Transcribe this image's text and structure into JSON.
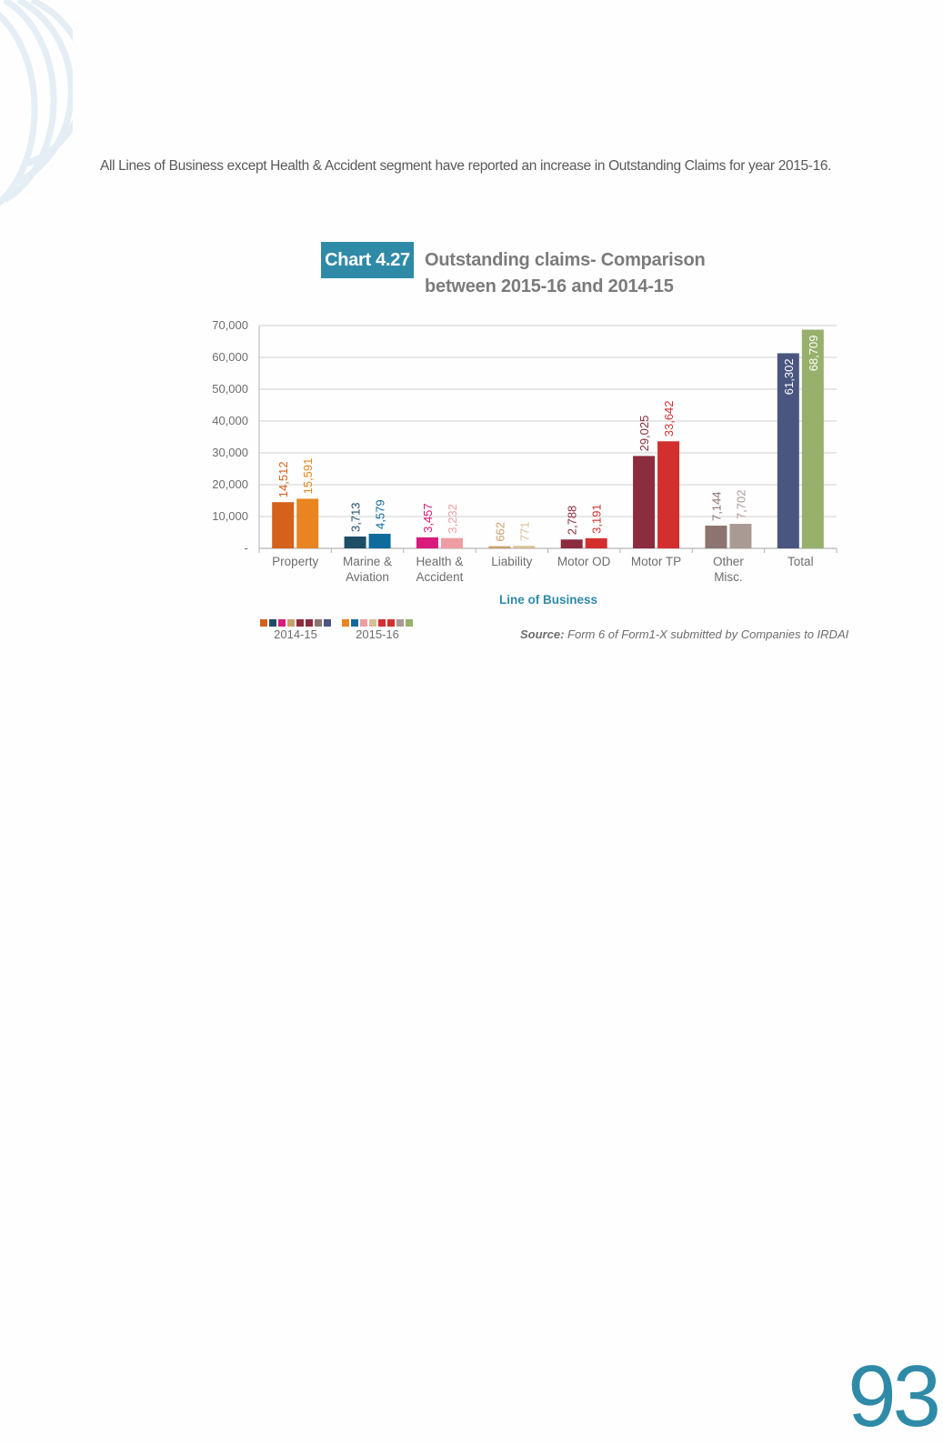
{
  "intro_text": "All Lines of Business except Health & Accident segment have reported an increase in Outstanding Claims for year 2015-16.",
  "chart_badge": "Chart 4.27",
  "chart_title_line1": "Outstanding claims- Comparison",
  "chart_title_line2": "between 2015-16 and 2014-15",
  "source_label": "Source:",
  "source_text": " Form 6 of Form1-X submitted by Companies to IRDAI",
  "page_number": "93",
  "colors": {
    "accent": "#2f8aa8",
    "grid": "#d0d0d0",
    "axis_text": "#6d6d6d",
    "xlabel": "#2f8aa8"
  },
  "chart_data": {
    "type": "bar",
    "categories": [
      [
        "Property"
      ],
      [
        "Marine &",
        "Aviation"
      ],
      [
        "Health &",
        "Accident"
      ],
      [
        "Liability"
      ],
      [
        "Motor OD"
      ],
      [
        "Motor TP"
      ],
      [
        "Other",
        "Misc."
      ],
      [
        "Total"
      ]
    ],
    "series": [
      {
        "name": "2014-15",
        "values": [
          14512,
          3713,
          3457,
          662,
          2788,
          29025,
          7144,
          61302
        ],
        "labels": [
          "14,512",
          "3,713",
          "3,457",
          "662",
          "2,788",
          "29,025",
          "7,144",
          "61,302"
        ],
        "colors": [
          "#d4611c",
          "#1d4e66",
          "#d81b7a",
          "#c8a06a",
          "#8b2d3f",
          "#8b2d3f",
          "#8c7570",
          "#4a5680"
        ]
      },
      {
        "name": "2015-16",
        "values": [
          15591,
          4579,
          3232,
          771,
          3191,
          33642,
          7702,
          68709
        ],
        "labels": [
          "15,591",
          "4,579",
          "3,232",
          "771",
          "3,191",
          "33,642",
          "7,702",
          "68,709"
        ],
        "colors": [
          "#e88520",
          "#0f6b9c",
          "#ee9ea3",
          "#d9be94",
          "#d32f2f",
          "#d32f2f",
          "#aa9a94",
          "#97b06c"
        ]
      }
    ],
    "xlabel": "Line of Business",
    "ylabel": "",
    "ylim": [
      0,
      70000
    ],
    "yticks": [
      0,
      10000,
      20000,
      30000,
      40000,
      50000,
      60000,
      70000
    ],
    "ytick_labels": [
      "-",
      "10,000",
      "20,000",
      "30,000",
      "40,000",
      "50,000",
      "60,000",
      "70,000"
    ],
    "grid": true,
    "legend_position": "bottom-left",
    "data_labels": "vertical-above-bars"
  }
}
